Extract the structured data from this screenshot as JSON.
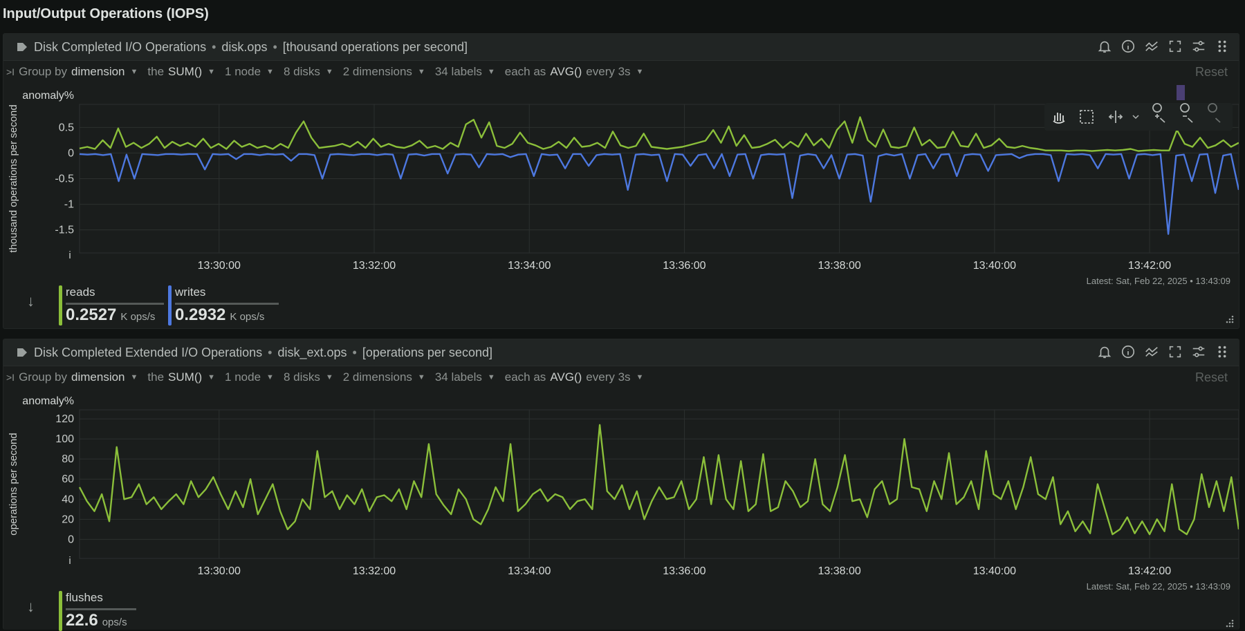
{
  "section_title": "Input/Output Operations (IOPS)",
  "colors": {
    "reads": "#8bbf3a",
    "writes": "#4d78e0",
    "flushes": "#8bbf3a",
    "grid": "#2c302f"
  },
  "group_by": {
    "group_by_label": "Group by",
    "group_by_value": "dimension",
    "the_label": "the",
    "agg_value": "SUM()",
    "nodes": "1 node",
    "disks": "8 disks",
    "dimensions": "2 dimensions",
    "labels": "34 labels",
    "each_as_label": "each as",
    "each_as_value": "AVG()",
    "every_label": "every 3s",
    "reset_label": "Reset"
  },
  "panels": [
    {
      "title": "Disk Completed I/O Operations",
      "context": "disk.ops",
      "units": "[thousand operations per second]",
      "ylabel": "thousand operations per second",
      "anomaly_label": "anomaly%",
      "info_marker": "i",
      "latest": "Latest: Sat, Feb 22, 2025 • 13:43:09",
      "legend": [
        {
          "name": "reads",
          "value": "0.2527",
          "unit": "K ops/s"
        },
        {
          "name": "writes",
          "value": "0.2932",
          "unit": "K ops/s"
        }
      ]
    },
    {
      "title": "Disk Completed Extended I/O Operations",
      "context": "disk_ext.ops",
      "units": "[operations per second]",
      "ylabel": "operations per second",
      "anomaly_label": "anomaly%",
      "info_marker": "i",
      "latest": "Latest: Sat, Feb 22, 2025 • 13:43:09",
      "legend": [
        {
          "name": "flushes",
          "value": "22.6",
          "unit": "ops/s"
        }
      ]
    }
  ],
  "chart_data": [
    {
      "type": "line",
      "ylabel": "thousand operations per second",
      "x_ticks": [
        "13:30:00",
        "13:32:00",
        "13:34:00",
        "13:36:00",
        "13:38:00",
        "13:40:00",
        "13:42:00"
      ],
      "y_ticks": [
        "0.5",
        "0",
        "-0.5",
        "-1",
        "-1.5"
      ],
      "ylim": [
        -1.95,
        0.95
      ],
      "x_range": [
        "13:28:12",
        "13:43:09"
      ],
      "series": [
        {
          "name": "reads",
          "color": "#8bbf3a",
          "values": [
            0.09,
            0.12,
            0.08,
            0.25,
            0.1,
            0.48,
            0.12,
            0.2,
            0.1,
            0.18,
            0.32,
            0.1,
            0.22,
            0.14,
            0.2,
            0.12,
            0.28,
            0.1,
            0.18,
            0.08,
            0.24,
            0.12,
            0.18,
            0.1,
            0.14,
            0.08,
            0.18,
            0.1,
            0.4,
            0.62,
            0.3,
            0.1,
            0.12,
            0.14,
            0.18,
            0.12,
            0.22,
            0.1,
            0.28,
            0.12,
            0.18,
            0.12,
            0.1,
            0.15,
            0.24,
            0.1,
            0.14,
            0.08,
            0.2,
            0.12,
            0.56,
            0.65,
            0.3,
            0.6,
            0.14,
            0.1,
            0.18,
            0.4,
            0.2,
            0.15,
            0.08,
            0.12,
            0.22,
            0.1,
            0.3,
            0.12,
            0.14,
            0.2,
            0.1,
            0.42,
            0.15,
            0.1,
            0.14,
            0.38,
            0.12,
            0.1,
            0.08,
            0.1,
            0.12,
            0.16,
            0.2,
            0.24,
            0.45,
            0.2,
            0.52,
            0.14,
            0.35,
            0.1,
            0.12,
            0.18,
            0.26,
            0.1,
            0.22,
            0.12,
            0.38,
            0.15,
            0.28,
            0.1,
            0.45,
            0.62,
            0.2,
            0.7,
            0.25,
            0.12,
            0.46,
            0.12,
            0.1,
            0.14,
            0.5,
            0.15,
            0.26,
            0.1,
            0.12,
            0.42,
            0.14,
            0.12,
            0.38,
            0.1,
            0.15,
            0.28,
            0.12,
            0.1,
            0.14,
            0.1,
            0.08,
            0.05,
            0.05,
            0.05,
            0.04,
            0.05,
            0.05,
            0.04,
            0.05,
            0.06,
            0.05,
            0.06,
            0.08,
            0.04,
            0.05,
            0.06,
            0.05,
            0.05,
            0.45,
            0.18,
            0.12,
            0.3,
            0.1,
            0.15,
            0.25,
            0.12,
            0.2
          ]
        },
        {
          "name": "writes",
          "color": "#4d78e0",
          "values": [
            -0.02,
            -0.03,
            -0.02,
            -0.04,
            -0.02,
            -0.55,
            -0.03,
            -0.5,
            -0.02,
            -0.03,
            -0.04,
            -0.02,
            -0.02,
            -0.03,
            -0.02,
            -0.02,
            -0.32,
            -0.02,
            -0.03,
            -0.02,
            -0.12,
            -0.02,
            -0.02,
            -0.04,
            -0.02,
            -0.03,
            -0.02,
            -0.15,
            -0.02,
            -0.02,
            -0.04,
            -0.5,
            -0.03,
            -0.02,
            -0.03,
            -0.04,
            -0.02,
            -0.02,
            -0.04,
            -0.02,
            -0.03,
            -0.5,
            -0.03,
            -0.02,
            -0.05,
            -0.02,
            -0.02,
            -0.4,
            -0.03,
            -0.02,
            -0.03,
            -0.28,
            -0.02,
            -0.03,
            -0.02,
            -0.08,
            -0.03,
            -0.02,
            -0.45,
            -0.02,
            -0.04,
            -0.03,
            -0.3,
            -0.02,
            -0.02,
            -0.25,
            -0.04,
            -0.02,
            -0.03,
            -0.02,
            -0.72,
            -0.03,
            -0.02,
            -0.04,
            -0.03,
            -0.55,
            -0.02,
            -0.03,
            -0.25,
            -0.04,
            -0.02,
            -0.3,
            -0.02,
            -0.45,
            -0.03,
            -0.02,
            -0.5,
            -0.04,
            -0.02,
            -0.03,
            -0.02,
            -0.88,
            -0.05,
            -0.02,
            -0.04,
            -0.3,
            -0.04,
            -0.5,
            -0.03,
            -0.02,
            -0.05,
            -0.95,
            -0.06,
            -0.02,
            -0.05,
            -0.02,
            -0.5,
            -0.04,
            -0.02,
            -0.3,
            -0.03,
            -0.02,
            -0.45,
            -0.04,
            -0.02,
            -0.03,
            -0.35,
            -0.04,
            -0.03,
            -0.02,
            -0.1,
            -0.04,
            -0.02,
            -0.02,
            -0.04,
            -0.55,
            -0.02,
            -0.03,
            -0.02,
            -0.04,
            -0.3,
            -0.02,
            -0.03,
            -0.02,
            -0.5,
            -0.03,
            -0.02,
            -0.04,
            -0.02,
            -1.58,
            -0.05,
            -0.03,
            -0.55,
            -0.03,
            -0.02,
            -0.78,
            -0.05,
            -0.02,
            -0.72
          ]
        }
      ]
    },
    {
      "type": "line",
      "ylabel": "operations per second",
      "x_ticks": [
        "13:30:00",
        "13:32:00",
        "13:34:00",
        "13:36:00",
        "13:38:00",
        "13:40:00",
        "13:42:00"
      ],
      "y_ticks": [
        "120",
        "100",
        "80",
        "60",
        "40",
        "20",
        "0"
      ],
      "ylim": [
        -19,
        129
      ],
      "x_range": [
        "13:28:12",
        "13:43:09"
      ],
      "series": [
        {
          "name": "flushes",
          "color": "#8bbf3a",
          "values": [
            52,
            38,
            28,
            45,
            18,
            92,
            40,
            42,
            55,
            35,
            42,
            30,
            38,
            45,
            35,
            58,
            42,
            50,
            62,
            45,
            30,
            48,
            32,
            60,
            25,
            40,
            55,
            28,
            10,
            18,
            40,
            30,
            88,
            42,
            48,
            30,
            44,
            35,
            50,
            28,
            42,
            44,
            38,
            50,
            30,
            58,
            42,
            95,
            45,
            34,
            25,
            50,
            40,
            20,
            15,
            30,
            52,
            38,
            95,
            28,
            35,
            45,
            50,
            38,
            45,
            42,
            30,
            38,
            40,
            30,
            114,
            48,
            40,
            54,
            30,
            48,
            20,
            38,
            52,
            40,
            42,
            58,
            30,
            40,
            82,
            35,
            84,
            40,
            30,
            78,
            28,
            35,
            85,
            28,
            32,
            58,
            48,
            32,
            38,
            80,
            35,
            28,
            52,
            84,
            38,
            40,
            22,
            50,
            58,
            35,
            40,
            100,
            52,
            50,
            28,
            58,
            40,
            86,
            35,
            42,
            58,
            30,
            88,
            45,
            40,
            58,
            30,
            52,
            82,
            45,
            40,
            62,
            15,
            28,
            8,
            18,
            6,
            55,
            30,
            5,
            10,
            22,
            6,
            18,
            5,
            20,
            8,
            55,
            10,
            5,
            20,
            65,
            32,
            58,
            28,
            62,
            10
          ]
        }
      ]
    }
  ]
}
